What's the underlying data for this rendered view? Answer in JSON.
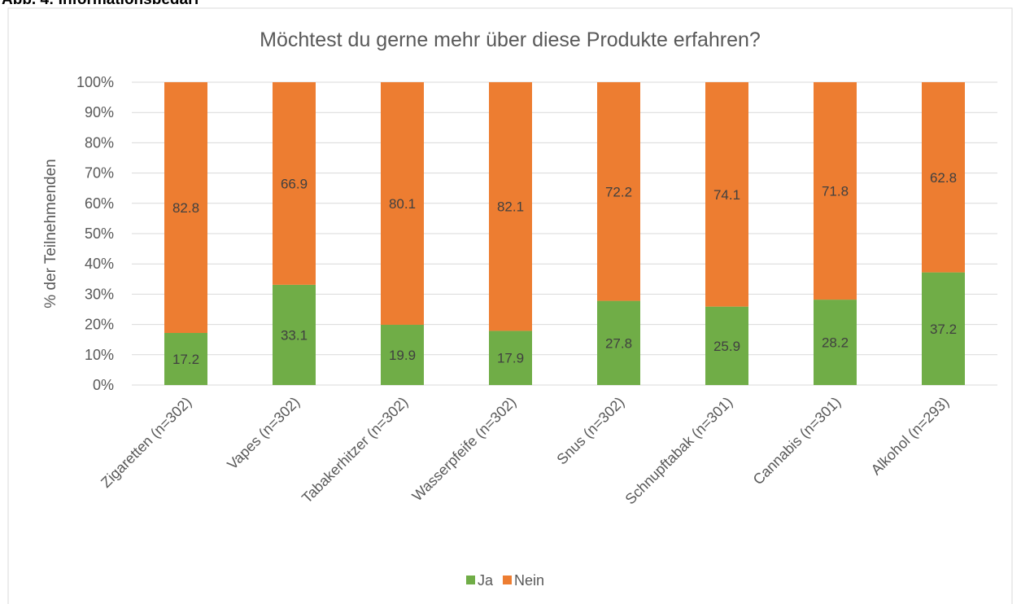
{
  "caption": "Abb. 4: Informationsbedarf",
  "chart_data": {
    "type": "stacked_bar",
    "title": "Möchtest du gerne mehr über diese Produkte erfahren?",
    "y_label": "% der Teilnehmenden",
    "categories": [
      "Zigaretten (n=302)",
      "Vapes (n=302)",
      "Tabakerhitzer (n=302)",
      "Wasserpfeife (n=302)",
      "Snus (n=302)",
      "Schnupftabak (n=301)",
      "Cannabis (n=301)",
      "Alkohol (n=293)"
    ],
    "series": [
      {
        "name": "Ja",
        "color": "#70ad47",
        "values": [
          17.2,
          33.1,
          19.9,
          17.9,
          27.8,
          25.9,
          28.2,
          37.2
        ]
      },
      {
        "name": "Nein",
        "color": "#ed7d31",
        "values": [
          82.8,
          66.9,
          80.1,
          82.1,
          72.2,
          74.1,
          71.8,
          62.8
        ]
      }
    ],
    "ylim": [
      0,
      100
    ],
    "yticks": [
      {
        "value": 0,
        "label": "0%"
      },
      {
        "value": 10,
        "label": "10%"
      },
      {
        "value": 20,
        "label": "20%"
      },
      {
        "value": 30,
        "label": "30%"
      },
      {
        "value": 40,
        "label": "40%"
      },
      {
        "value": 50,
        "label": "50%"
      },
      {
        "value": 60,
        "label": "60%"
      },
      {
        "value": 70,
        "label": "70%"
      },
      {
        "value": 80,
        "label": "80%"
      },
      {
        "value": 90,
        "label": "90%"
      },
      {
        "value": 100,
        "label": "100%"
      }
    ],
    "grid": true,
    "legend": "bottom"
  }
}
